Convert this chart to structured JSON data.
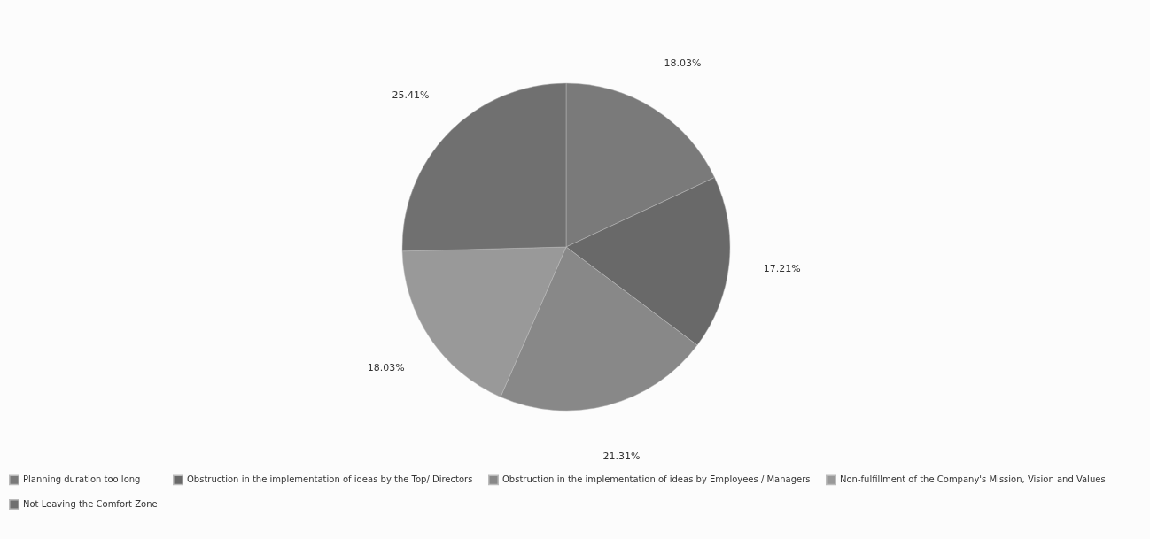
{
  "chart_data": {
    "type": "pie",
    "categories": [
      "Planning duration too long",
      "Obstruction in the implementation of ideas by the Top/ Directors",
      "Obstruction in the implementation of ideas by Employees / Managers",
      "Non-fulfillment of the Company's Mission, Vision and Values",
      "Not Leaving the Comfort Zone"
    ],
    "values": [
      18.03,
      17.21,
      21.31,
      18.03,
      25.41
    ],
    "value_labels": [
      "18.03%",
      "17.21%",
      "21.31%",
      "18.03%",
      "25.41%"
    ],
    "colors": [
      "#7a7a7a",
      "#696969",
      "#888888",
      "#999999",
      "#707070"
    ],
    "legend": "bottom"
  }
}
